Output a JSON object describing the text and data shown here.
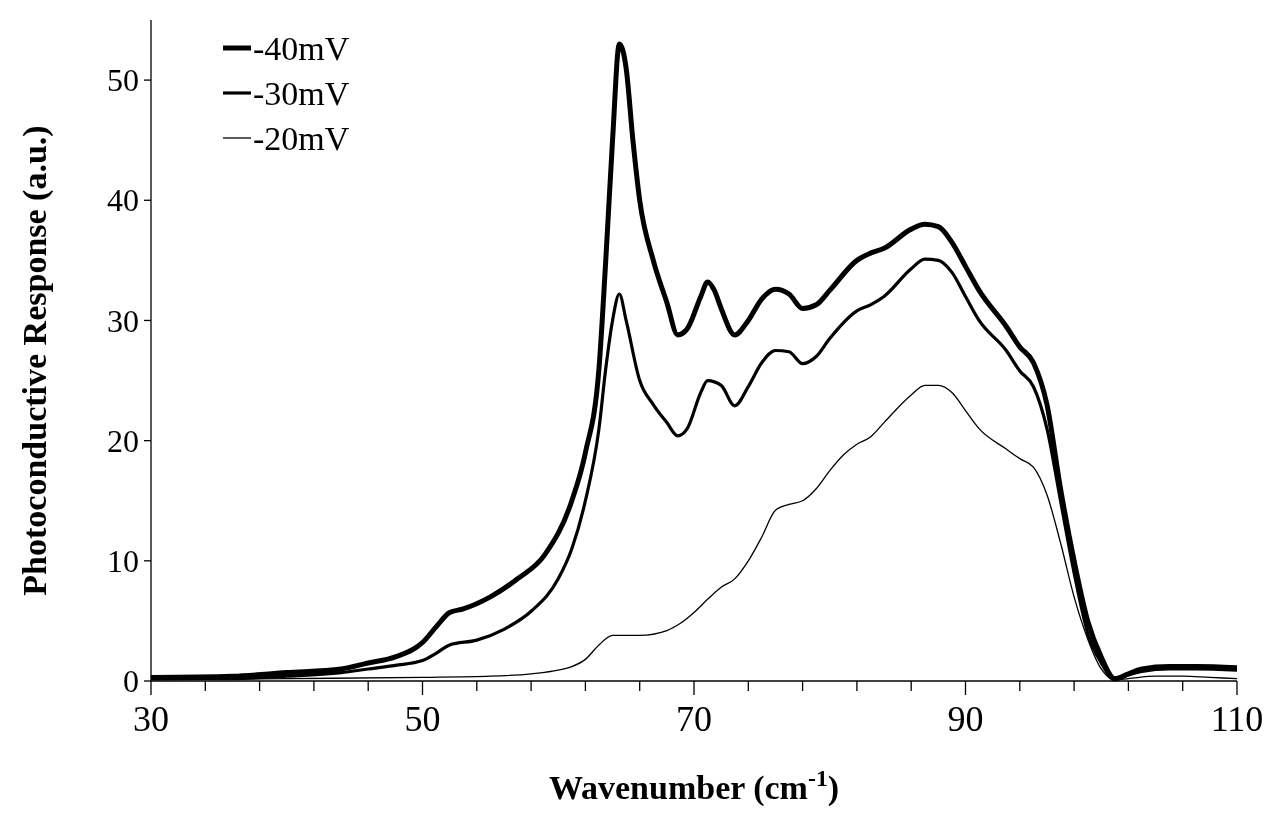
{
  "chart_data": {
    "type": "line",
    "xlabel": "Wavenumber (cm$^{-1}$)",
    "ylabel": "Photoconductive Response (a.u.)",
    "xlim": [
      30,
      110
    ],
    "ylim": [
      0,
      55
    ],
    "xticks": [
      30,
      {
        "value": 34,
        "label": null
      },
      {
        "value": 38,
        "label": null
      },
      {
        "value": 42,
        "label": null
      },
      {
        "value": 46,
        "label": null
      },
      50,
      {
        "value": 54,
        "label": null
      },
      {
        "value": 58,
        "label": null
      },
      {
        "value": 62,
        "label": null
      },
      {
        "value": 66,
        "label": null
      },
      70,
      {
        "value": 74,
        "label": null
      },
      {
        "value": 78,
        "label": null
      },
      {
        "value": 82,
        "label": null
      },
      {
        "value": 86,
        "label": null
      },
      90,
      {
        "value": 94,
        "label": null
      },
      {
        "value": 98,
        "label": null
      },
      {
        "value": 102,
        "label": null
      },
      {
        "value": 106,
        "label": null
      },
      110
    ],
    "yticks": [
      0,
      10,
      20,
      30,
      40,
      50
    ],
    "grid": false,
    "legend": "top left",
    "marker": "none",
    "line_style": "solid",
    "series": [
      {
        "name": "-40mV",
        "color": "#000000",
        "x": [
          30,
          36,
          40,
          44,
          46,
          48,
          50,
          51,
          52,
          53,
          55,
          57,
          59,
          61,
          62,
          63,
          63.5,
          64,
          64.5,
          65,
          65.5,
          66,
          67,
          68,
          68.8,
          69.5,
          70.5,
          71,
          71.5,
          72,
          73,
          74,
          75,
          76,
          77,
          78,
          79,
          80,
          82,
          83,
          84,
          86,
          87,
          88,
          89,
          90,
          91,
          93,
          94,
          95,
          96,
          97,
          98,
          99,
          100,
          101,
          102,
          103,
          105,
          107,
          110
        ],
        "values": [
          0.3,
          0.4,
          0.7,
          1.0,
          1.5,
          2.0,
          3.2,
          4.5,
          5.7,
          6.0,
          7.0,
          8.5,
          10.5,
          15,
          19,
          26,
          35,
          45,
          53,
          51,
          45,
          40,
          35,
          31.5,
          28.8,
          29.3,
          32,
          33.2,
          32.5,
          31,
          28.8,
          30,
          31.8,
          32.6,
          32.2,
          31,
          31.3,
          32.5,
          35,
          35.6,
          36,
          37.6,
          38,
          37.8,
          36.5,
          34.5,
          32.5,
          29.5,
          27.8,
          26.5,
          23,
          16,
          10,
          5,
          2,
          0.2,
          0.6,
          1.0,
          1.2,
          1.2,
          1.1
        ]
      },
      {
        "name": "-30mV",
        "color": "#000000",
        "x": [
          30,
          36,
          40,
          44,
          46,
          48,
          50,
          51,
          52,
          54,
          56,
          58,
          60,
          61,
          62,
          63,
          63.5,
          64,
          64.5,
          65,
          66,
          67,
          68,
          68.8,
          69.5,
          70.5,
          71,
          72,
          73,
          74,
          75,
          76,
          77,
          78,
          79,
          80,
          82,
          83,
          84,
          86,
          87,
          88,
          89,
          90,
          91,
          93,
          94,
          95,
          96,
          97,
          98,
          99,
          100,
          101,
          102,
          103,
          105,
          107,
          110
        ],
        "values": [
          0.2,
          0.2,
          0.4,
          0.7,
          1.0,
          1.3,
          1.7,
          2.3,
          3.0,
          3.4,
          4.3,
          5.8,
          8.5,
          11,
          15,
          21,
          26,
          30,
          32.2,
          30,
          25,
          23,
          21.5,
          20.4,
          21,
          24,
          25,
          24.6,
          22.9,
          24.5,
          26.5,
          27.5,
          27.4,
          26.4,
          27,
          28.5,
          30.8,
          31.3,
          32,
          34.3,
          35.1,
          35,
          34,
          32,
          30,
          27.5,
          25.8,
          24.5,
          21,
          15,
          9,
          4,
          1.5,
          0.1,
          0.5,
          0.8,
          1.0,
          1.0,
          0.9
        ]
      },
      {
        "name": "-20mV",
        "color": "#000000",
        "x": [
          30,
          40,
          50,
          55,
          58,
          60,
          61,
          62,
          63,
          64,
          65,
          66,
          68,
          69,
          70,
          71,
          72,
          73,
          74,
          75,
          76,
          77,
          78,
          79,
          80,
          81,
          82,
          83,
          84,
          86,
          87,
          88,
          89,
          90,
          91,
          93,
          94,
          95,
          96,
          97,
          98,
          99,
          100,
          101,
          102,
          104,
          106,
          108,
          110
        ],
        "values": [
          0.1,
          0.2,
          0.3,
          0.4,
          0.6,
          0.9,
          1.2,
          1.8,
          3.0,
          3.8,
          3.8,
          3.8,
          4.2,
          4.8,
          5.7,
          6.8,
          7.8,
          8.5,
          10,
          12,
          14.2,
          14.7,
          15,
          16,
          17.5,
          18.8,
          19.7,
          20.3,
          21.5,
          23.8,
          24.6,
          24.6,
          24,
          22.5,
          21,
          19.3,
          18.5,
          17.8,
          15.5,
          11.5,
          7,
          3.5,
          1,
          0.1,
          0.2,
          0.4,
          0.4,
          0.3,
          0.2
        ]
      }
    ]
  }
}
